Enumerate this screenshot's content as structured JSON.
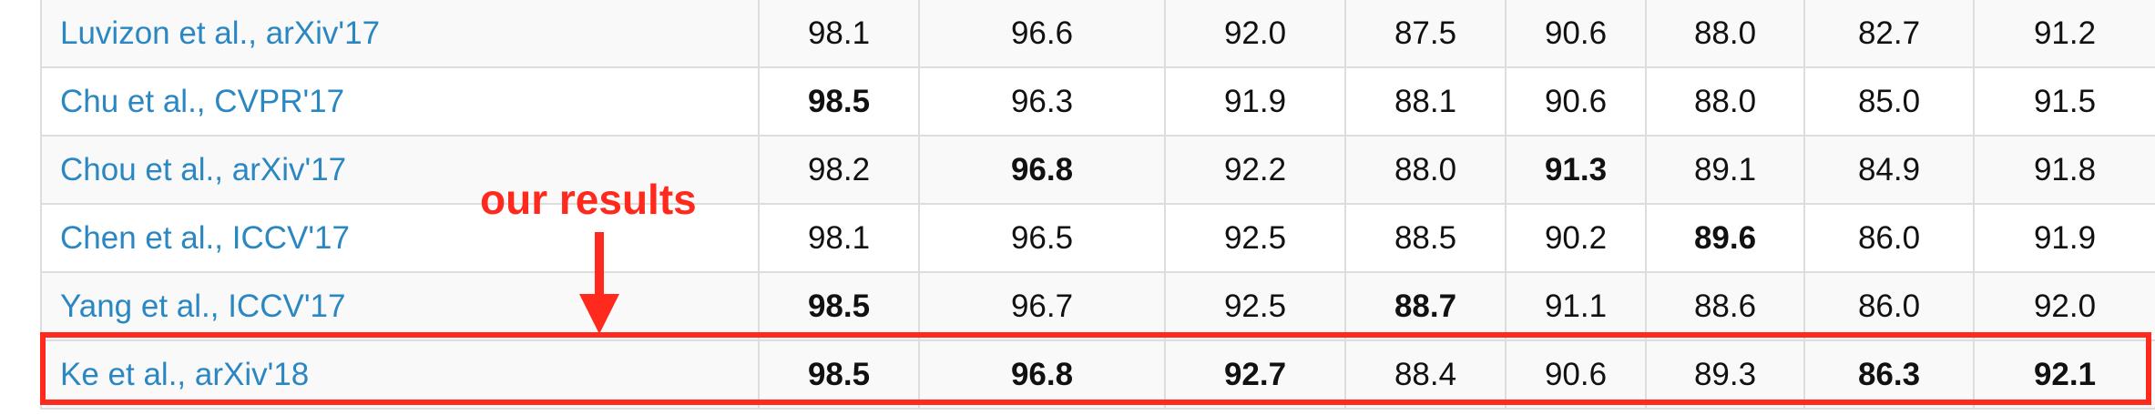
{
  "annotation": {
    "label": "our results",
    "color": "#ff2a1d"
  },
  "colors": {
    "link": "#2b87c1",
    "stripe": "#f9f9f9",
    "border": "#dddddd"
  },
  "rows": [
    {
      "method": "Luvizon et al., arXiv'17",
      "values": [
        "98.1",
        "96.6",
        "92.0",
        "87.5",
        "90.6",
        "88.0",
        "82.7",
        "91.2"
      ],
      "bold": [
        false,
        false,
        false,
        false,
        false,
        false,
        false,
        false
      ]
    },
    {
      "method": "Chu et al., CVPR'17",
      "values": [
        "98.5",
        "96.3",
        "91.9",
        "88.1",
        "90.6",
        "88.0",
        "85.0",
        "91.5"
      ],
      "bold": [
        true,
        false,
        false,
        false,
        false,
        false,
        false,
        false
      ]
    },
    {
      "method": "Chou et al., arXiv'17",
      "values": [
        "98.2",
        "96.8",
        "92.2",
        "88.0",
        "91.3",
        "89.1",
        "84.9",
        "91.8"
      ],
      "bold": [
        false,
        true,
        false,
        false,
        true,
        false,
        false,
        false
      ]
    },
    {
      "method": "Chen et al., ICCV'17",
      "values": [
        "98.1",
        "96.5",
        "92.5",
        "88.5",
        "90.2",
        "89.6",
        "86.0",
        "91.9"
      ],
      "bold": [
        false,
        false,
        false,
        false,
        false,
        true,
        false,
        false
      ]
    },
    {
      "method": "Yang et al., ICCV'17",
      "values": [
        "98.5",
        "96.7",
        "92.5",
        "88.7",
        "91.1",
        "88.6",
        "86.0",
        "92.0"
      ],
      "bold": [
        true,
        false,
        false,
        true,
        false,
        false,
        false,
        false
      ]
    },
    {
      "method": "Ke et al., arXiv'18",
      "values": [
        "98.5",
        "96.8",
        "92.7",
        "88.4",
        "90.6",
        "89.3",
        "86.3",
        "92.1"
      ],
      "bold": [
        true,
        true,
        true,
        false,
        false,
        false,
        true,
        true
      ]
    }
  ]
}
